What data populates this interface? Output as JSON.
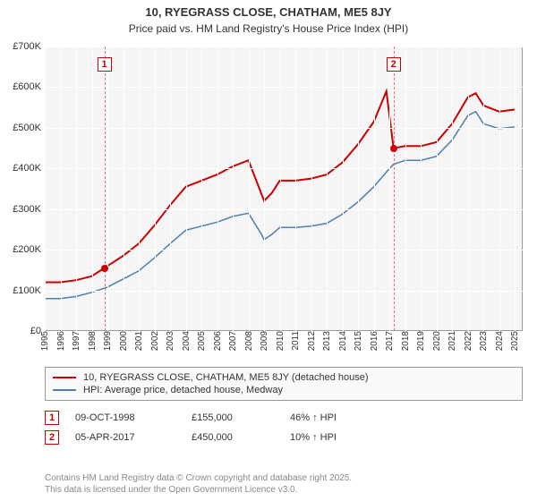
{
  "title": "10, RYEGRASS CLOSE, CHATHAM, ME5 8JY",
  "subtitle": "Price paid vs. HM Land Registry's House Price Index (HPI)",
  "chart": {
    "type": "line",
    "background_color": "#f5f5f5",
    "grid_color": "#ffffff",
    "border_color": "#999999",
    "x_years": [
      1995,
      1996,
      1997,
      1998,
      1999,
      2000,
      2001,
      2002,
      2003,
      2004,
      2005,
      2006,
      2007,
      2008,
      2009,
      2010,
      2011,
      2012,
      2013,
      2014,
      2015,
      2016,
      2017,
      2018,
      2019,
      2020,
      2021,
      2022,
      2023,
      2024,
      2025
    ],
    "x_min": 1995,
    "x_max": 2025.5,
    "y_min": 0,
    "y_max": 700,
    "y_ticks": [
      0,
      100,
      200,
      300,
      400,
      500,
      600,
      700
    ],
    "y_tick_prefix": "£",
    "y_tick_suffix": "K",
    "label_fontsize": 11,
    "tick_fontsize": 10,
    "series": [
      {
        "name": "property",
        "label": "10, RYEGRASS CLOSE, CHATHAM, ME5 8JY (detached house)",
        "color": "#cc0000",
        "line_width": 2,
        "data": [
          [
            1995,
            120
          ],
          [
            1996,
            120
          ],
          [
            1997,
            125
          ],
          [
            1998,
            135
          ],
          [
            1998.8,
            155
          ],
          [
            1999,
            160
          ],
          [
            2000,
            185
          ],
          [
            2001,
            215
          ],
          [
            2002,
            260
          ],
          [
            2003,
            310
          ],
          [
            2004,
            355
          ],
          [
            2005,
            370
          ],
          [
            2006,
            385
          ],
          [
            2007,
            405
          ],
          [
            2008,
            420
          ],
          [
            2008.8,
            340
          ],
          [
            2009,
            320
          ],
          [
            2009.5,
            340
          ],
          [
            2010,
            370
          ],
          [
            2011,
            370
          ],
          [
            2012,
            375
          ],
          [
            2013,
            385
          ],
          [
            2014,
            415
          ],
          [
            2015,
            460
          ],
          [
            2016,
            515
          ],
          [
            2016.8,
            590
          ],
          [
            2017.26,
            450
          ],
          [
            2018,
            455
          ],
          [
            2019,
            455
          ],
          [
            2020,
            465
          ],
          [
            2021,
            510
          ],
          [
            2022,
            575
          ],
          [
            2022.5,
            585
          ],
          [
            2023,
            555
          ],
          [
            2024,
            540
          ],
          [
            2025,
            545
          ]
        ]
      },
      {
        "name": "hpi",
        "label": "HPI: Average price, detached house, Medway",
        "color": "#4a7fb0",
        "line_width": 1.5,
        "data": [
          [
            1995,
            80
          ],
          [
            1996,
            80
          ],
          [
            1997,
            85
          ],
          [
            1998,
            95
          ],
          [
            1999,
            108
          ],
          [
            2000,
            128
          ],
          [
            2001,
            148
          ],
          [
            2002,
            180
          ],
          [
            2003,
            215
          ],
          [
            2004,
            248
          ],
          [
            2005,
            258
          ],
          [
            2006,
            268
          ],
          [
            2007,
            282
          ],
          [
            2008,
            290
          ],
          [
            2008.8,
            240
          ],
          [
            2009,
            225
          ],
          [
            2009.5,
            238
          ],
          [
            2010,
            255
          ],
          [
            2011,
            255
          ],
          [
            2012,
            258
          ],
          [
            2013,
            265
          ],
          [
            2014,
            288
          ],
          [
            2015,
            318
          ],
          [
            2016,
            355
          ],
          [
            2017,
            400
          ],
          [
            2017.26,
            410
          ],
          [
            2018,
            420
          ],
          [
            2019,
            420
          ],
          [
            2020,
            430
          ],
          [
            2021,
            470
          ],
          [
            2022,
            530
          ],
          [
            2022.5,
            540
          ],
          [
            2023,
            510
          ],
          [
            2024,
            498
          ],
          [
            2025,
            502
          ]
        ]
      }
    ],
    "markers": [
      {
        "id": "1",
        "x": 1998.8,
        "label_y_top": 12
      },
      {
        "id": "2",
        "x": 2017.26,
        "label_y_top": 12
      }
    ],
    "sale_points": [
      {
        "x": 1998.8,
        "y": 155,
        "color": "#cc0000"
      },
      {
        "x": 2017.26,
        "y": 450,
        "color": "#cc0000"
      }
    ]
  },
  "legend": {
    "items": [
      {
        "color": "#cc0000",
        "label": "10, RYEGRASS CLOSE, CHATHAM, ME5 8JY (detached house)"
      },
      {
        "color": "#4a7fb0",
        "label": "HPI: Average price, detached house, Medway"
      }
    ]
  },
  "sales": [
    {
      "id": "1",
      "date": "09-OCT-1998",
      "price": "£155,000",
      "hpi_delta": "46% ↑ HPI"
    },
    {
      "id": "2",
      "date": "05-APR-2017",
      "price": "£450,000",
      "hpi_delta": "10% ↑ HPI"
    }
  ],
  "footer": {
    "line1": "Contains HM Land Registry data © Crown copyright and database right 2025.",
    "line2": "This data is licensed under the Open Government Licence v3.0."
  }
}
